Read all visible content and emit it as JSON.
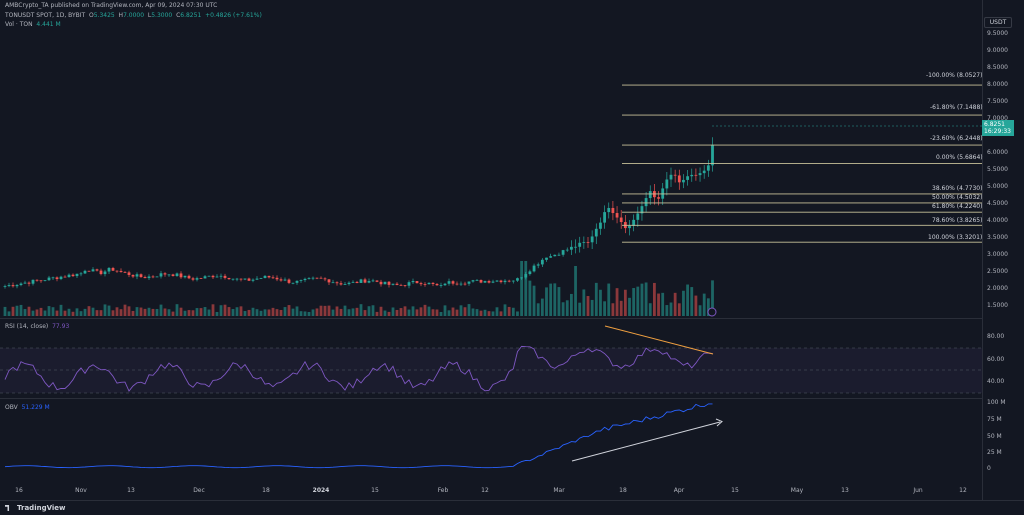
{
  "publisher": {
    "text": "AMBCrypto_TA published on TradingView.com, Apr 09, 2024 07:30 UTC"
  },
  "symbol": {
    "name": "TONUSDT SPOT, 1D, BYBIT",
    "o_label": "O",
    "o": "5.3425",
    "h_label": "H",
    "h": "7.0000",
    "l_label": "L",
    "l": "5.3000",
    "c_label": "C",
    "c": "6.8251",
    "change": "+0.4826 (+7.61%)"
  },
  "volume": {
    "label": "Vol · TON",
    "value": "4.441 M"
  },
  "rsi": {
    "label": "RSI (14, close)",
    "value": "77.93"
  },
  "obv": {
    "label": "OBV",
    "value": "51.229 M"
  },
  "currency_badge": "USDT",
  "current_price": {
    "price": "6.8251",
    "countdown": "16:29:33"
  },
  "colors": {
    "up": "#26a69a",
    "down": "#ef5350",
    "rsi": "#7e57c2",
    "obv": "#2962ff",
    "fib": "#c8c29a",
    "bg": "#131722"
  },
  "price_axis": [
    "9.5000",
    "9.0000",
    "8.5000",
    "8.0000",
    "7.5000",
    "7.0000",
    "6.0000",
    "5.5000",
    "5.0000",
    "4.5000",
    "4.0000",
    "3.5000",
    "3.0000",
    "2.5000",
    "2.0000",
    "1.5000"
  ],
  "rsi_axis": [
    "80.00",
    "60.00",
    "40.00"
  ],
  "obv_axis": [
    "100 M",
    "75 M",
    "50 M",
    "25 M",
    "0"
  ],
  "fib_levels": [
    {
      "label": "-100.00% (8.0527)",
      "price": 8.0527
    },
    {
      "label": "-61.80% (7.1488)",
      "price": 7.1488
    },
    {
      "label": "-23.60% (6.2448)",
      "price": 6.2448
    },
    {
      "label": "0.00% (5.6864)",
      "price": 5.6864
    },
    {
      "label": "38.60% (4.7730)",
      "price": 4.773
    },
    {
      "label": "50.00% (4.5032)",
      "price": 4.5032
    },
    {
      "label": "61.80% (4.2240)",
      "price": 4.224
    },
    {
      "label": "78.60% (3.8265)",
      "price": 3.8265
    },
    {
      "label": "100.00% (3.3201)",
      "price": 3.3201
    }
  ],
  "x_axis": [
    {
      "label": "16",
      "bold": false
    },
    {
      "label": "Nov",
      "bold": false
    },
    {
      "label": "13",
      "bold": false
    },
    {
      "label": "Dec",
      "bold": false
    },
    {
      "label": "18",
      "bold": false
    },
    {
      "label": "2024",
      "bold": true
    },
    {
      "label": "15",
      "bold": false
    },
    {
      "label": "Feb",
      "bold": false
    },
    {
      "label": "12",
      "bold": false
    },
    {
      "label": "Mar",
      "bold": false
    },
    {
      "label": "18",
      "bold": false
    },
    {
      "label": "Apr",
      "bold": false
    },
    {
      "label": "15",
      "bold": false
    },
    {
      "label": "May",
      "bold": false
    },
    {
      "label": "13",
      "bold": false
    },
    {
      "label": "Jun",
      "bold": false
    },
    {
      "label": "12",
      "bold": false
    }
  ],
  "footer": {
    "brand": "TradingView"
  }
}
